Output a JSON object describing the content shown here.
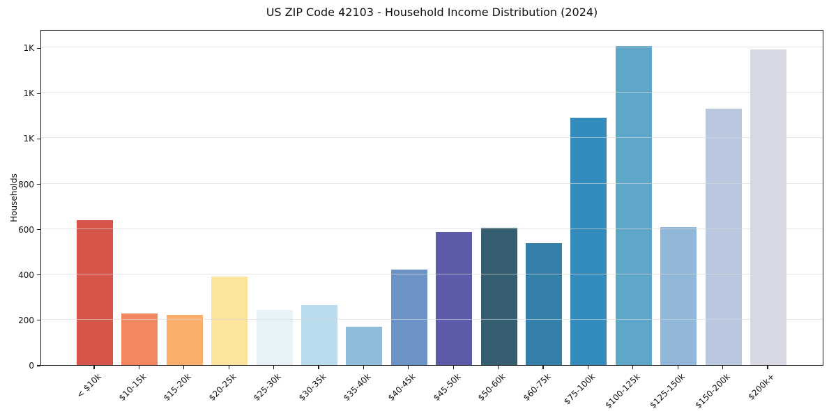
{
  "title": "US ZIP Code 42103 - Household Income Distribution (2024)",
  "chart_data": {
    "type": "bar",
    "title": "US ZIP Code 42103 - Household Income Distribution (2024)",
    "xlabel": "",
    "ylabel": "Households",
    "categories": [
      "< $10k",
      "$10-15k",
      "$15-20k",
      "$20-25k",
      "$25-30k",
      "$30-35k",
      "$35-40k",
      "$40-45k",
      "$45-50k",
      "$50-60k",
      "$60-75k",
      "$75-100k",
      "$100-125k",
      "$125-150k",
      "$150-200k",
      "$200k+"
    ],
    "values": [
      640,
      228,
      221,
      390,
      242,
      264,
      169,
      420,
      588,
      605,
      538,
      1090,
      1405,
      607,
      1130,
      1390
    ],
    "bar_colors": [
      "#d6564c",
      "#f4875f",
      "#f9ae6b",
      "#fde49c",
      "#e6f2f5",
      "#badded",
      "#8fbcdb",
      "#6b93c6",
      "#5c5baa",
      "#355e70",
      "#3480a8",
      "#338bbe",
      "#5ea7c9",
      "#90b7d9",
      "#b9c8de",
      "#d7d9e5"
    ],
    "ylim": [
      0,
      1480
    ],
    "yticks": {
      "values": [
        0,
        200,
        400,
        600,
        800,
        1000,
        1200,
        1400
      ],
      "labels": [
        "0",
        "200",
        "400",
        "600",
        "800",
        "1K",
        "1K",
        "1K"
      ]
    },
    "grid": "horizontal",
    "gridline_color": "#d9d9d9",
    "legend": "none",
    "background": "#ffffff"
  }
}
